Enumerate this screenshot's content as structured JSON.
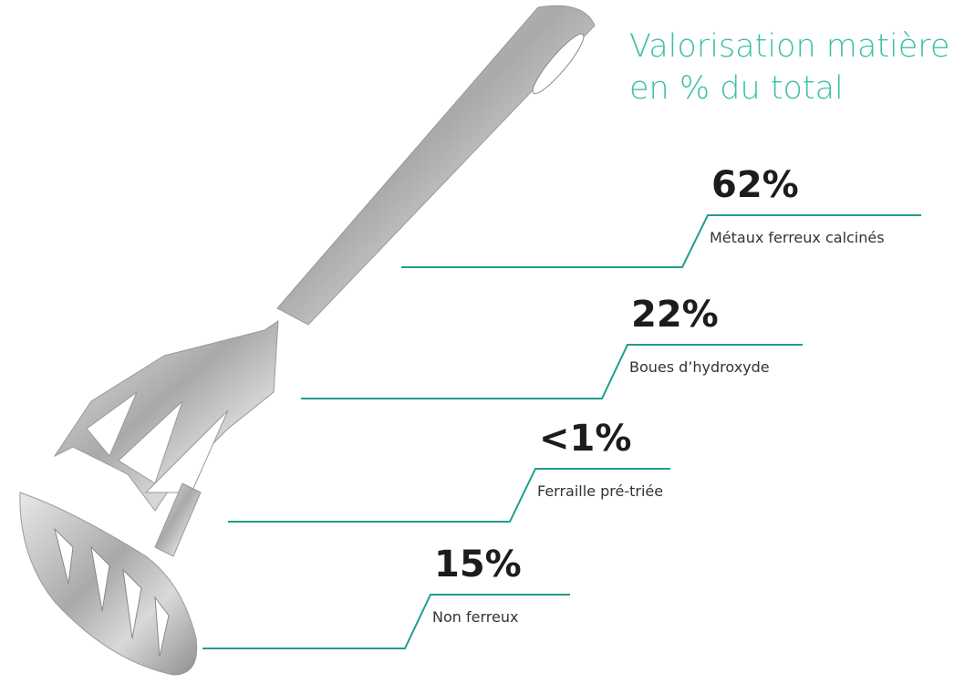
{
  "title": {
    "line1": "Valorisation matière",
    "line2": "en % du total"
  },
  "items": [
    {
      "value": "62%",
      "label": "Métaux ferreux calcinés"
    },
    {
      "value": "22%",
      "label": "Boues d’hydroxyde"
    },
    {
      "value": "<1%",
      "label": "Ferraille pré-triée"
    },
    {
      "value": "15%",
      "label": "Non ferreux"
    }
  ]
}
